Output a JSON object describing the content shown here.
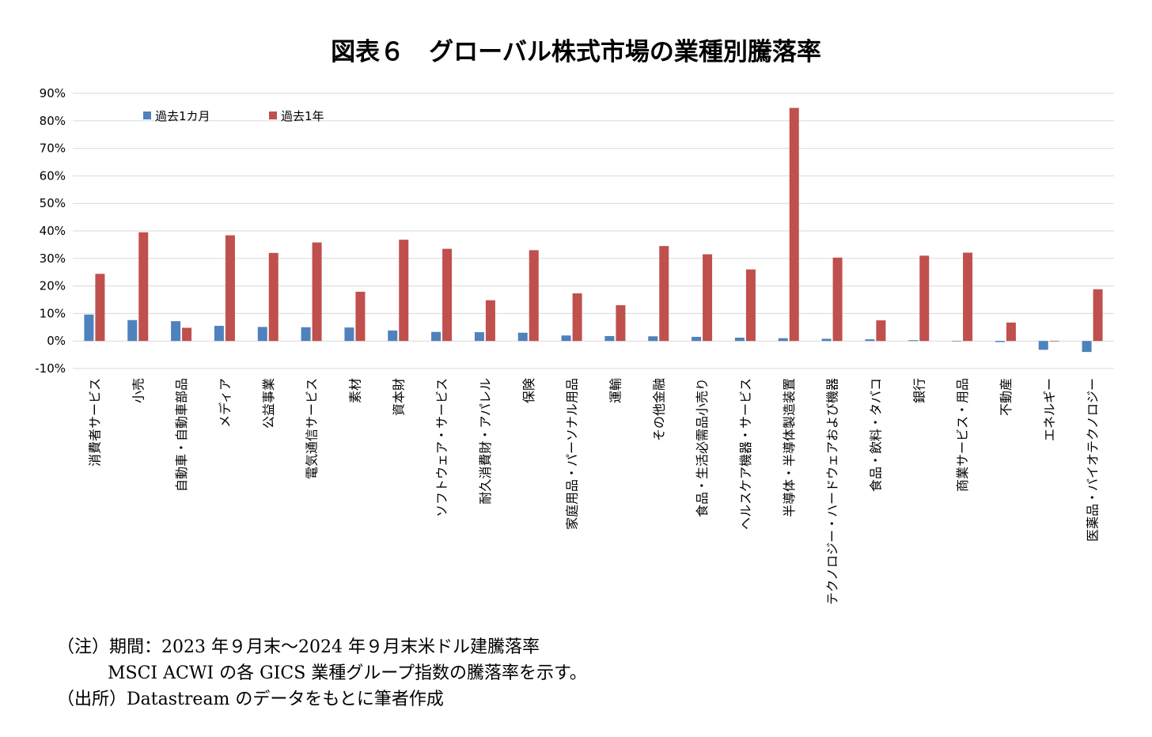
{
  "title": "図表６　グローバル株式市場の業種別騰落率",
  "chart_data": {
    "type": "bar",
    "categories": [
      "消費者サービス",
      "小売",
      "自動車・自動車部品",
      "メディア",
      "公益事業",
      "電気通信サービス",
      "素材",
      "資本財",
      "ソフトウェア・サービス",
      "耐久消費財・アパレル",
      "保険",
      "家庭用品・パーソナル用品",
      "運輸",
      "その他金融",
      "食品・生活必需品小売り",
      "ヘルスケア機器・サービス",
      "半導体・半導体製造装置",
      "テクノロジー・ハードウェアおよび機器",
      "食品・飲料・タバコ",
      "銀行",
      "商業サービス・用品",
      "不動産",
      "エネルギー",
      "医薬品・バイオテクノロジー"
    ],
    "series": [
      {
        "name": "過去1カ月",
        "color": "#4F81BD",
        "values": [
          9.6,
          7.6,
          7.2,
          5.5,
          5.1,
          5.0,
          4.9,
          3.8,
          3.3,
          3.2,
          3.0,
          2.0,
          1.8,
          1.7,
          1.5,
          1.2,
          1.0,
          0.8,
          0.6,
          0.3,
          0.0,
          -0.4,
          -3.2,
          -4.0
        ]
      },
      {
        "name": "過去1年",
        "color": "#C0504D",
        "values": [
          24.4,
          39.5,
          4.8,
          38.4,
          32.0,
          35.8,
          17.9,
          36.8,
          33.5,
          14.8,
          33.0,
          17.3,
          13.0,
          34.5,
          31.5,
          26.0,
          84.7,
          30.3,
          7.5,
          31.0,
          32.1,
          6.7,
          -0.2,
          18.8
        ]
      }
    ],
    "yticks": [
      "90%",
      "80%",
      "70%",
      "60%",
      "50%",
      "40%",
      "30%",
      "20%",
      "10%",
      "0%",
      "-10%"
    ],
    "ylim": [
      -10,
      90
    ],
    "grid": true,
    "legend": "top-left"
  },
  "notes": [
    "（注）期間：2023 年９月末～2024 年９月末米ドル建騰落率",
    "MSCI ACWI の各 GICS 業種グループ指数の騰落率を示す。",
    "（出所）Datastream のデータをもとに筆者作成"
  ]
}
